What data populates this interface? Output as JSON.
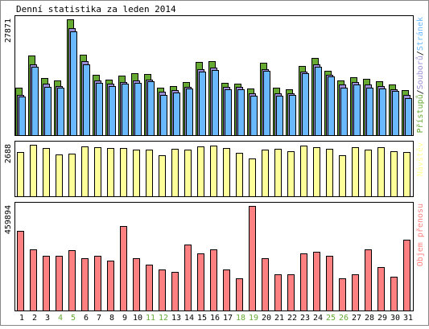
{
  "title": "Denní statistika za leden 2014",
  "colors": {
    "hits": "#66aa33",
    "files": "#9a8fd6",
    "pages": "#6ab8ff",
    "visits": "#ffff99",
    "volume": "#ff8080",
    "weekend": "#66aa33",
    "axis": "#000000"
  },
  "chart_data": [
    {
      "type": "bar",
      "name": "requests",
      "ymax_label": "27871",
      "ylim": [
        0,
        27871
      ],
      "legend": [
        "Přístupů",
        "Souborů",
        "Stránek"
      ],
      "legend_sep": "/",
      "categories": [
        "1",
        "2",
        "3",
        "4",
        "5",
        "6",
        "7",
        "8",
        "9",
        "10",
        "11",
        "12",
        "13",
        "14",
        "15",
        "16",
        "17",
        "18",
        "19",
        "20",
        "21",
        "22",
        "23",
        "24",
        "25",
        "26",
        "27",
        "28",
        "29",
        "30",
        "31"
      ],
      "weekend_days": [
        "4",
        "5",
        "11",
        "12",
        "18",
        "19",
        "25",
        "26"
      ],
      "series": [
        {
          "name": "Přístupů",
          "values": [
            11400,
            19100,
            13700,
            13200,
            27871,
            19400,
            14600,
            13300,
            14300,
            14900,
            14800,
            11400,
            11800,
            12800,
            17600,
            17900,
            12600,
            12400,
            11200,
            17500,
            11500,
            11000,
            16700,
            18500,
            15400,
            13200,
            13900,
            13500,
            12900,
            12200,
            10800
          ]
        },
        {
          "name": "Souborů",
          "values": [
            9700,
            17000,
            12400,
            11800,
            25700,
            17800,
            13100,
            12400,
            12800,
            13100,
            13300,
            10500,
            10900,
            11700,
            15800,
            16300,
            11700,
            11700,
            10000,
            15800,
            10100,
            10000,
            15200,
            17000,
            14600,
            12200,
            12800,
            12200,
            11800,
            11100,
            9600
          ]
        },
        {
          "name": "Stránek",
          "values": [
            9300,
            16500,
            11600,
            11400,
            25000,
            17000,
            12600,
            11900,
            12300,
            12600,
            12900,
            9700,
            10200,
            11200,
            15200,
            15600,
            11000,
            11100,
            9400,
            15500,
            9500,
            9600,
            14900,
            16400,
            14200,
            11500,
            12100,
            11500,
            11200,
            10700,
            8900
          ]
        }
      ]
    },
    {
      "type": "bar",
      "name": "visits",
      "ymax_label": "2688",
      "ylim": [
        0,
        2688
      ],
      "legend": [
        "Návštěv"
      ],
      "categories": [
        "1",
        "2",
        "3",
        "4",
        "5",
        "6",
        "7",
        "8",
        "9",
        "10",
        "11",
        "12",
        "13",
        "14",
        "15",
        "16",
        "17",
        "18",
        "19",
        "20",
        "21",
        "22",
        "23",
        "24",
        "25",
        "26",
        "27",
        "28",
        "29",
        "30",
        "31"
      ],
      "series": [
        {
          "name": "Návštěv",
          "values": [
            2290,
            2688,
            2500,
            2200,
            2240,
            2590,
            2580,
            2500,
            2530,
            2440,
            2420,
            2150,
            2460,
            2420,
            2590,
            2640,
            2510,
            2280,
            1990,
            2450,
            2490,
            2370,
            2650,
            2580,
            2480,
            2140,
            2570,
            2420,
            2570,
            2340,
            2310
          ]
        }
      ]
    },
    {
      "type": "bar",
      "name": "volume",
      "ymax_label": "459894",
      "ylim": [
        0,
        459894
      ],
      "legend": [
        "Objem přenosu"
      ],
      "categories": [
        "1",
        "2",
        "3",
        "4",
        "5",
        "6",
        "7",
        "8",
        "9",
        "10",
        "11",
        "12",
        "13",
        "14",
        "15",
        "16",
        "17",
        "18",
        "19",
        "20",
        "21",
        "22",
        "23",
        "24",
        "25",
        "26",
        "27",
        "28",
        "29",
        "30",
        "31"
      ],
      "series": [
        {
          "name": "Objem přenosu",
          "values": [
            350000,
            270000,
            240000,
            240000,
            265000,
            230000,
            240000,
            220000,
            370000,
            230000,
            200000,
            180000,
            170000,
            290000,
            250000,
            270000,
            180000,
            140000,
            459894,
            230000,
            160000,
            160000,
            250000,
            260000,
            240000,
            140000,
            160000,
            270000,
            190000,
            150000,
            310000
          ]
        }
      ]
    }
  ]
}
